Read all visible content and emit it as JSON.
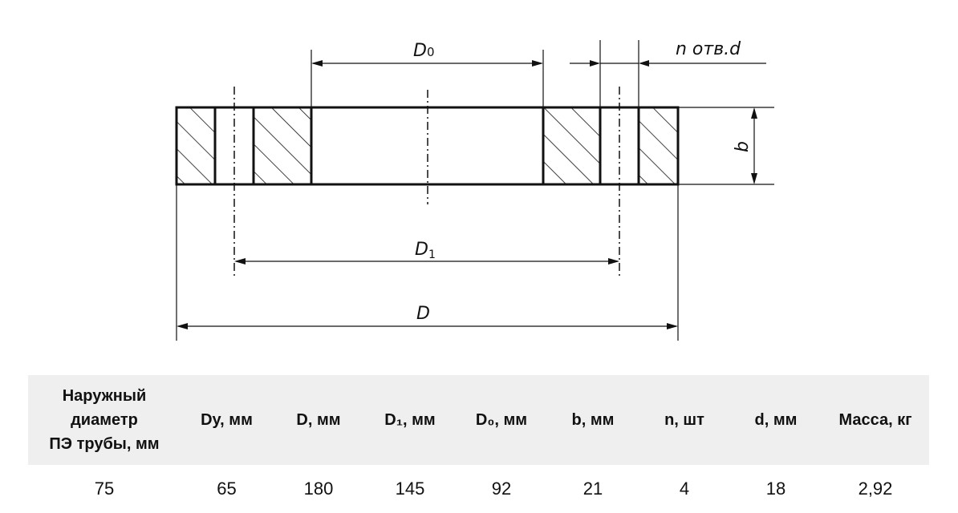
{
  "drawing": {
    "labels": {
      "D0": "D",
      "D0_sub": "0",
      "nd": "n отв.d",
      "b": "b",
      "D1": "D",
      "D1_sub": "1",
      "D": "D"
    }
  },
  "table": {
    "headers": [
      "Наружный",
      "диаметр",
      "ПЭ трубы, мм",
      "Dy, мм",
      "D, мм",
      "D₁, мм",
      "D₀, мм",
      "b, мм",
      "n, шт",
      "d, мм",
      "Масса, кг"
    ],
    "row": [
      "75",
      "65",
      "180",
      "145",
      "92",
      "21",
      "4",
      "18",
      "2,92"
    ]
  },
  "colors": {
    "header_bg": "#efefef",
    "line": "#111111"
  }
}
